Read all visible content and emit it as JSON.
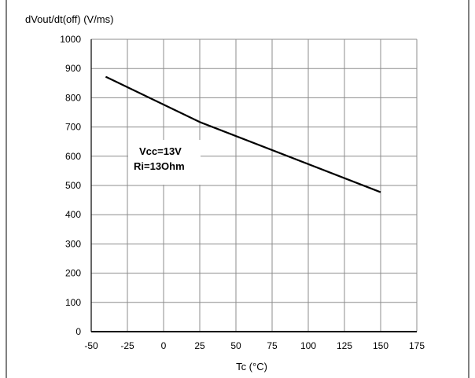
{
  "chart_data": {
    "type": "line",
    "title": "",
    "xlabel": "Tc (°C)",
    "ylabel": "dVout/dt(off) (V/ms)",
    "xlim": [
      -50,
      175
    ],
    "ylim": [
      0,
      1000
    ],
    "x_ticks": [
      -50,
      -25,
      0,
      25,
      50,
      75,
      100,
      125,
      150,
      175
    ],
    "y_ticks": [
      0,
      100,
      200,
      300,
      400,
      500,
      600,
      700,
      800,
      900,
      1000
    ],
    "grid": true,
    "legend": "none",
    "annotations": [
      "Vcc=13V",
      "Ri=13Ohm"
    ],
    "series": [
      {
        "color": "#000000",
        "x": [
          -40,
          25,
          150
        ],
        "y": [
          872,
          717,
          477
        ]
      }
    ]
  }
}
